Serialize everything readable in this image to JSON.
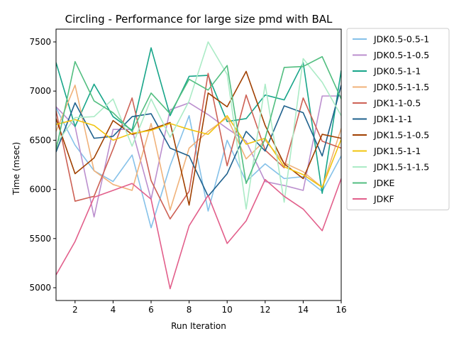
{
  "chart_data": {
    "type": "line",
    "title": "Circling - Performance for large size pmd with BAL",
    "xlabel": "Run Iteration",
    "ylabel": "Time (msec)",
    "xlim": [
      1,
      16
    ],
    "ylim": [
      4870,
      7630
    ],
    "x_ticks": [
      2,
      4,
      6,
      8,
      10,
      12,
      14,
      16
    ],
    "y_ticks": [
      5000,
      5500,
      6000,
      6500,
      7000,
      7500
    ],
    "grid": false,
    "legend_position": "outside-right",
    "x": [
      1,
      2,
      3,
      4,
      5,
      6,
      7,
      8,
      9,
      10,
      11,
      12,
      13,
      14,
      15,
      16
    ],
    "series": [
      {
        "name": "JDK0.5-0.5-1",
        "color": "#85c1e9",
        "values": [
          6830,
          6450,
          6190,
          6080,
          6350,
          5610,
          6240,
          6750,
          5780,
          6500,
          6080,
          6260,
          6110,
          6130,
          5980,
          6340
        ]
      },
      {
        "name": "JDK0.5-1-0.5",
        "color": "#bb8fce",
        "values": [
          6840,
          6640,
          5720,
          6610,
          6610,
          5900,
          6810,
          6880,
          6760,
          6620,
          6490,
          6080,
          6040,
          5990,
          6950,
          6950
        ]
      },
      {
        "name": "JDK0.5-1-1",
        "color": "#17a589",
        "values": [
          7290,
          6640,
          7070,
          6740,
          6600,
          7440,
          6750,
          7150,
          7160,
          6690,
          6720,
          6960,
          6910,
          7290,
          5960,
          7210
        ]
      },
      {
        "name": "JDK0.5-1-1.5",
        "color": "#f0b27a",
        "values": [
          6590,
          7060,
          6190,
          6050,
          5990,
          6670,
          5790,
          6420,
          6590,
          6730,
          6310,
          6500,
          6270,
          6180,
          6020,
          6620
        ]
      },
      {
        "name": "JDK1-1-0.5",
        "color": "#cd6155",
        "values": [
          6800,
          5880,
          5930,
          6410,
          6930,
          6090,
          5700,
          5980,
          7180,
          6240,
          6960,
          6400,
          6220,
          6930,
          6490,
          6420
        ]
      },
      {
        "name": "JDK1-1-1",
        "color": "#1f618d",
        "values": [
          6380,
          6880,
          6520,
          6540,
          6740,
          6770,
          6420,
          6340,
          5930,
          6160,
          6590,
          6390,
          6850,
          6780,
          6340,
          7060
        ]
      },
      {
        "name": "JDK1.5-1-0.5",
        "color": "#a04000",
        "values": [
          6720,
          6160,
          6320,
          6700,
          6560,
          6610,
          6680,
          5840,
          6980,
          6840,
          7200,
          6650,
          6260,
          6110,
          6560,
          6520
        ]
      },
      {
        "name": "JDK1.5-1-1",
        "color": "#f1c40f",
        "values": [
          6660,
          6710,
          6650,
          6500,
          6570,
          6600,
          6670,
          6610,
          6560,
          6750,
          6460,
          6520,
          6230,
          6150,
          6020,
          6510
        ]
      },
      {
        "name": "JDK1.5-1-1.5",
        "color": "#abebc6",
        "values": [
          6460,
          6730,
          6740,
          6920,
          6440,
          6920,
          6530,
          6900,
          7500,
          7170,
          5800,
          7070,
          5870,
          7330,
          7090,
          6750
        ]
      },
      {
        "name": "JDKE",
        "color": "#52be80",
        "values": [
          6400,
          7300,
          6900,
          6780,
          6590,
          6980,
          6770,
          7120,
          7010,
          7260,
          6060,
          6520,
          7240,
          7250,
          7350,
          6920
        ]
      },
      {
        "name": "JDKF",
        "color": "#e25f8b",
        "values": [
          5130,
          5470,
          5920,
          5990,
          6060,
          5900,
          4990,
          5630,
          5940,
          5450,
          5680,
          6100,
          5930,
          5800,
          5580,
          6110
        ]
      }
    ]
  }
}
